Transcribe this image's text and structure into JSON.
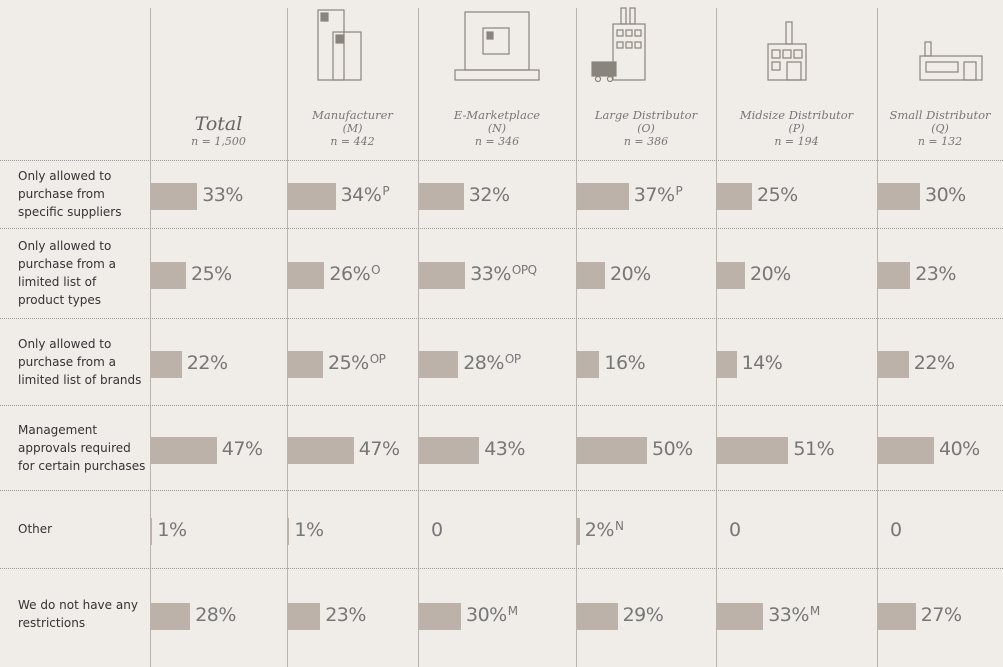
{
  "chart_data": {
    "type": "bar",
    "color": "#bcb2aa",
    "xlim": [
      0,
      100
    ],
    "categories": [
      "Only allowed to purchase from specific suppliers",
      "Only allowed to purchase from a limited list of product types",
      "Only allowed to purchase from a limited list of brands",
      "Management approvals required for certain purchases",
      "Other",
      "We do not have any restrictions"
    ],
    "series": [
      {
        "name": "Total",
        "code": null,
        "n_label": "n = 1,500",
        "values": [
          33,
          25,
          22,
          47,
          1,
          28
        ],
        "value_labels": [
          "33%",
          "25%",
          "22%",
          "47%",
          "1%",
          "28%"
        ],
        "superscripts": [
          null,
          null,
          null,
          null,
          null,
          null
        ]
      },
      {
        "name": "Manufacturer",
        "code": "(M)",
        "n_label": "n = 442",
        "values": [
          34,
          26,
          25,
          47,
          1,
          23
        ],
        "value_labels": [
          "34%",
          "26%",
          "25%",
          "47%",
          "1%",
          "23%"
        ],
        "superscripts": [
          "P",
          "O",
          "OP",
          null,
          null,
          null
        ]
      },
      {
        "name": "E-Marketplace",
        "code": "(N)",
        "n_label": "n = 346",
        "values": [
          32,
          33,
          28,
          43,
          0,
          30
        ],
        "value_labels": [
          "32%",
          "33%",
          "28%",
          "43%",
          "0",
          "30%"
        ],
        "superscripts": [
          null,
          "OPQ",
          "OP",
          null,
          null,
          "M"
        ]
      },
      {
        "name": "Large Distributor",
        "code": "(O)",
        "n_label": "n = 386",
        "values": [
          37,
          20,
          16,
          50,
          2,
          29
        ],
        "value_labels": [
          "37%",
          "20%",
          "16%",
          "50%",
          "2%",
          "29%"
        ],
        "superscripts": [
          "P",
          null,
          null,
          null,
          "N",
          null
        ]
      },
      {
        "name": "Midsize Distributor",
        "code": "(P)",
        "n_label": "n = 194",
        "values": [
          25,
          20,
          14,
          51,
          0,
          33
        ],
        "value_labels": [
          "25%",
          "20%",
          "14%",
          "51%",
          "0",
          "33%"
        ],
        "superscripts": [
          null,
          null,
          null,
          null,
          null,
          "M"
        ]
      },
      {
        "name": "Small Distributor",
        "code": "(Q)",
        "n_label": "n = 132",
        "values": [
          30,
          23,
          22,
          40,
          0,
          27
        ],
        "value_labels": [
          "30%",
          "23%",
          "22%",
          "40%",
          "0",
          "27%"
        ],
        "superscripts": [
          null,
          null,
          null,
          null,
          null,
          null
        ]
      }
    ]
  }
}
